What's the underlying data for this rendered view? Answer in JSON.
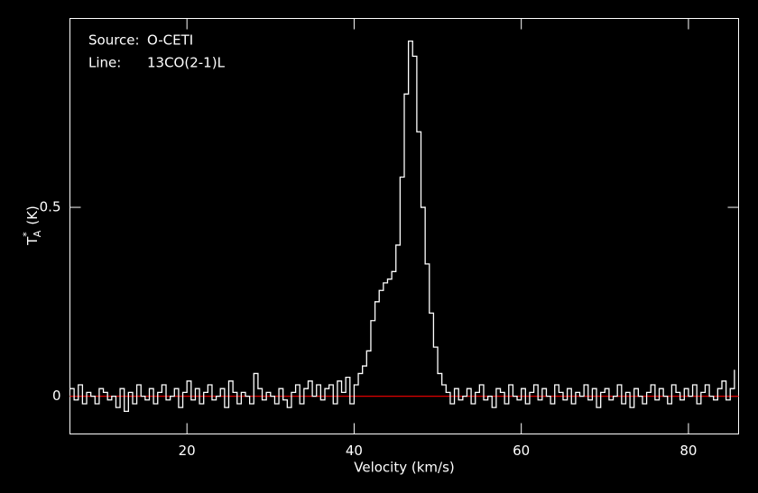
{
  "chart_data": {
    "type": "step",
    "annotations": [
      {
        "label": "Source:",
        "value": "O-CETI"
      },
      {
        "label": "Line:",
        "value": "13CO(2-1)L"
      }
    ],
    "xlabel": "Velocity (km/s)",
    "ylabel": {
      "symbol": "T",
      "superscript": "*",
      "subscript": "A",
      "unit": "(K)"
    },
    "x": [
      6,
      6.5,
      7,
      7.5,
      8,
      8.5,
      9,
      9.5,
      10,
      10.5,
      11,
      11.5,
      12,
      12.5,
      13,
      13.5,
      14,
      14.5,
      15,
      15.5,
      16,
      16.5,
      17,
      17.5,
      18,
      18.5,
      19,
      19.5,
      20,
      20.5,
      21,
      21.5,
      22,
      22.5,
      23,
      23.5,
      24,
      24.5,
      25,
      25.5,
      26,
      26.5,
      27,
      27.5,
      28,
      28.5,
      29,
      29.5,
      30,
      30.5,
      31,
      31.5,
      32,
      32.5,
      33,
      33.5,
      34,
      34.5,
      35,
      35.5,
      36,
      36.5,
      37,
      37.5,
      38,
      38.5,
      39,
      39.5,
      40,
      40.5,
      41,
      41.5,
      42,
      42.5,
      43,
      43.5,
      44,
      44.5,
      45,
      45.5,
      46,
      46.5,
      47,
      47.5,
      48,
      48.5,
      49,
      49.5,
      50,
      50.5,
      51,
      51.5,
      52,
      52.5,
      53,
      53.5,
      54,
      54.5,
      55,
      55.5,
      56,
      56.5,
      57,
      57.5,
      58,
      58.5,
      59,
      59.5,
      60,
      60.5,
      61,
      61.5,
      62,
      62.5,
      63,
      63.5,
      64,
      64.5,
      65,
      65.5,
      66,
      66.5,
      67,
      67.5,
      68,
      68.5,
      69,
      69.5,
      70,
      70.5,
      71,
      71.5,
      72,
      72.5,
      73,
      73.5,
      74,
      74.5,
      75,
      75.5,
      76,
      76.5,
      77,
      77.5,
      78,
      78.5,
      79,
      79.5,
      80,
      80.5,
      81,
      81.5,
      82,
      82.5,
      83,
      83.5,
      84,
      84.5,
      85,
      85.5
    ],
    "values": [
      0.02,
      -0.01,
      0.03,
      -0.02,
      0.01,
      0.0,
      -0.02,
      0.02,
      0.01,
      -0.01,
      0.0,
      -0.03,
      0.02,
      -0.04,
      0.01,
      -0.02,
      0.03,
      0.0,
      -0.01,
      0.02,
      -0.02,
      0.01,
      0.03,
      -0.01,
      0.0,
      0.02,
      -0.03,
      0.01,
      0.04,
      -0.01,
      0.02,
      -0.02,
      0.01,
      0.03,
      -0.01,
      0.0,
      0.02,
      -0.03,
      0.04,
      0.01,
      -0.02,
      0.01,
      0.0,
      -0.02,
      0.06,
      0.02,
      -0.01,
      0.01,
      0.0,
      -0.02,
      0.02,
      -0.01,
      -0.03,
      0.01,
      0.03,
      -0.02,
      0.02,
      0.04,
      0.0,
      0.03,
      -0.01,
      0.02,
      0.03,
      -0.02,
      0.04,
      0.01,
      0.05,
      -0.02,
      0.03,
      0.06,
      0.08,
      0.12,
      0.2,
      0.25,
      0.28,
      0.3,
      0.31,
      0.33,
      0.4,
      0.58,
      0.8,
      0.94,
      0.9,
      0.7,
      0.5,
      0.35,
      0.22,
      0.13,
      0.06,
      0.03,
      0.01,
      -0.02,
      0.02,
      -0.01,
      0.0,
      0.02,
      -0.02,
      0.01,
      0.03,
      -0.01,
      0.0,
      -0.03,
      0.02,
      0.01,
      -0.02,
      0.03,
      0.0,
      -0.01,
      0.02,
      -0.02,
      0.01,
      0.03,
      -0.01,
      0.02,
      0.0,
      -0.02,
      0.03,
      0.01,
      -0.01,
      0.02,
      -0.02,
      0.01,
      0.0,
      0.03,
      -0.01,
      0.02,
      -0.03,
      0.01,
      0.02,
      -0.01,
      0.0,
      0.03,
      -0.02,
      0.01,
      -0.03,
      0.02,
      0.0,
      -0.02,
      0.01,
      0.03,
      -0.01,
      0.02,
      0.0,
      -0.02,
      0.03,
      0.01,
      -0.01,
      0.02,
      0.0,
      0.03,
      -0.02,
      0.01,
      0.03,
      0.0,
      -0.01,
      0.02,
      0.04,
      -0.01,
      0.02,
      0.07
    ],
    "color": "#ffffff",
    "baseline": 0,
    "baseline_color": "#e00000",
    "xlim": [
      6,
      86
    ],
    "ylim": [
      -0.1,
      1.0
    ],
    "xticks": [
      20,
      40,
      60,
      80
    ],
    "yticks": [
      0,
      0.5
    ]
  }
}
